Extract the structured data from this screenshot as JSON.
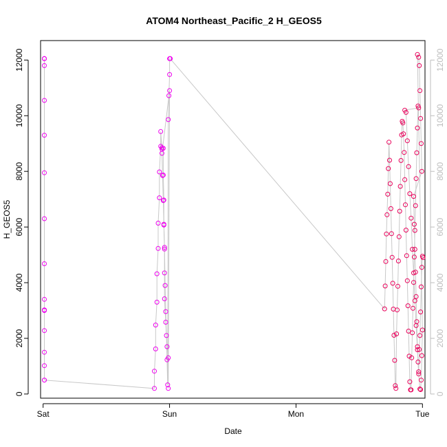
{
  "chart_data": {
    "type": "scatter",
    "title": "ATOM4 Northeast_Pacific_2 H_GEOS5",
    "xlabel": "Date",
    "ylabel": "H_GEOS5",
    "x_ticks": [
      "Sat",
      "Sun",
      "Mon",
      "Tue"
    ],
    "xlim": [
      -0.02,
      3.02
    ],
    "ylim": [
      -150,
      12700
    ],
    "y_ticks": [
      0,
      2000,
      4000,
      6000,
      8000,
      10000,
      12000
    ],
    "y_ticks_right": [
      0,
      2000,
      4000,
      6000,
      8000,
      10000,
      12000
    ],
    "grid": false,
    "legend": "none",
    "colors": {
      "early": "#ee00ee",
      "late": "#e8005a",
      "line": "#c8c8c8",
      "right_axis": "#bdbdbd"
    },
    "series": [
      {
        "x": [
          0.01,
          0.01,
          0.01,
          0.01,
          0.01,
          0.01,
          0.01,
          0.01,
          0.01,
          0.01,
          0.01,
          0.01,
          0.01,
          0.01,
          0.01,
          0.01,
          0.01,
          0.01,
          0.01
        ],
        "y": [
          12050,
          12050,
          12050,
          12050,
          11800,
          10550,
          9300,
          7950,
          6300,
          4680,
          3400,
          3020,
          3020,
          3000,
          2280,
          1500,
          1020,
          500,
          500
        ]
      },
      {
        "x": [
          0.88,
          0.88,
          0.89,
          0.89,
          0.9,
          0.9,
          0.91,
          0.91,
          0.92,
          0.92,
          0.93,
          0.93,
          0.94,
          0.94,
          0.95,
          0.95,
          0.955,
          0.955,
          0.96,
          0.96,
          0.96,
          0.97,
          0.98,
          0.99,
          0.99,
          1.0
        ],
        "y": [
          200,
          820,
          1620,
          2480,
          3300,
          4320,
          5230,
          6140,
          7050,
          7980,
          8900,
          9430,
          8800,
          8850,
          8830,
          7870,
          6970,
          6070,
          5210,
          4350,
          3420,
          2580,
          1700,
          1300,
          200,
          10900
        ]
      },
      {
        "x": [
          0.94,
          0.945,
          0.95,
          0.955,
          0.96,
          0.965,
          0.97,
          0.975,
          0.98,
          0.985,
          0.99,
          0.995,
          1.0,
          1.0,
          1.005,
          1.005
        ],
        "y": [
          8650,
          7850,
          6950,
          6100,
          5270,
          3900,
          2960,
          2100,
          1230,
          330,
          9860,
          10720,
          11480,
          12050,
          12050,
          12050
        ]
      },
      {
        "x": [
          2.7,
          2.705,
          2.71,
          2.715,
          2.72,
          2.725,
          2.73,
          2.735,
          2.74,
          2.745,
          2.75,
          2.755,
          2.76,
          2.765,
          2.77,
          2.775,
          2.78,
          2.785,
          2.79,
          2.795,
          2.8,
          2.805,
          2.81,
          2.815,
          2.82,
          2.825,
          2.83,
          2.835,
          2.84,
          2.845,
          2.85,
          2.855,
          2.86,
          2.865,
          2.87,
          2.875,
          2.88,
          2.885,
          2.89,
          2.895,
          2.9,
          2.905,
          2.91,
          2.915,
          2.92,
          2.925,
          2.93,
          2.935,
          2.94,
          2.945,
          2.95,
          2.955,
          2.96,
          2.965,
          2.97
        ],
        "y": [
          3060,
          3880,
          4760,
          5750,
          6440,
          7180,
          8100,
          9050,
          8400,
          7560,
          6660,
          5760,
          4910,
          3980,
          3050,
          2110,
          1210,
          300,
          200,
          2160,
          3020,
          3870,
          4780,
          5650,
          6570,
          7460,
          8390,
          9310,
          9800,
          9740,
          9350,
          8680,
          7700,
          6800,
          5890,
          4970,
          4070,
          3170,
          2260,
          1360,
          440,
          150,
          150,
          1300,
          2200,
          3080,
          4010,
          4920,
          5880,
          6770,
          7740,
          8670,
          9560,
          10350,
          10280
        ]
      },
      {
        "x": [
          2.86,
          2.87,
          2.88,
          2.89,
          2.9,
          2.91,
          2.92,
          2.93,
          2.94,
          2.95,
          2.96,
          2.97,
          2.98,
          2.985,
          2.99,
          2.995,
          3.0,
          2.96,
          2.97,
          2.975,
          2.98,
          2.985,
          2.99,
          2.995
        ],
        "y": [
          10200,
          10120,
          9100,
          8170,
          7200,
          6320,
          5200,
          4350,
          3350,
          2460,
          1590,
          720,
          180,
          160,
          500,
          1380,
          2300,
          12200,
          12100,
          11800,
          10900,
          9900,
          9000,
          8000
        ]
      },
      {
        "x": [
          2.93,
          2.935,
          2.94,
          2.945,
          2.95,
          2.955,
          2.96,
          2.965,
          2.97,
          2.975,
          2.98,
          2.985,
          2.99,
          2.995,
          3.0,
          3.005
        ],
        "y": [
          7100,
          6100,
          5200,
          4380,
          3500,
          2600,
          1700,
          1150,
          800,
          1600,
          2100,
          2950,
          3850,
          4550,
          4950,
          4900
        ]
      }
    ]
  }
}
